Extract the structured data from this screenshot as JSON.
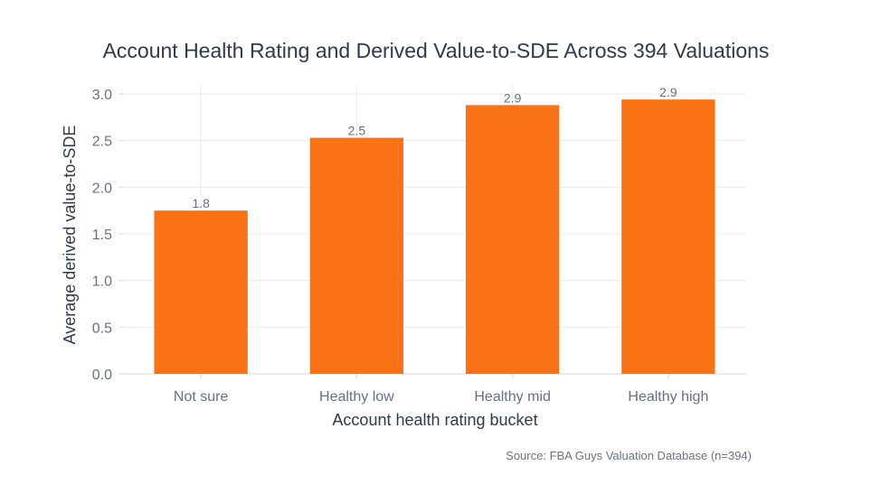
{
  "chart_data": {
    "type": "bar",
    "title": "Account Health Rating and Derived Value-to-SDE Across 394 Valuations",
    "xlabel": "Account health rating bucket",
    "ylabel": "Average derived value-to-SDE",
    "categories": [
      "Not sure",
      "Healthy low",
      "Healthy mid",
      "Healthy high"
    ],
    "values": [
      1.75,
      2.53,
      2.88,
      2.94
    ],
    "data_labels": [
      "1.8",
      "2.5",
      "2.9",
      "2.9"
    ],
    "ylim": [
      0,
      3.0
    ],
    "yticks": [
      "0.0",
      "0.5",
      "1.0",
      "1.5",
      "2.0",
      "2.5",
      "3.0"
    ],
    "grid": true,
    "bar_color": "#f97316",
    "source": "Source: FBA Guys Valuation Database (n=394)"
  }
}
